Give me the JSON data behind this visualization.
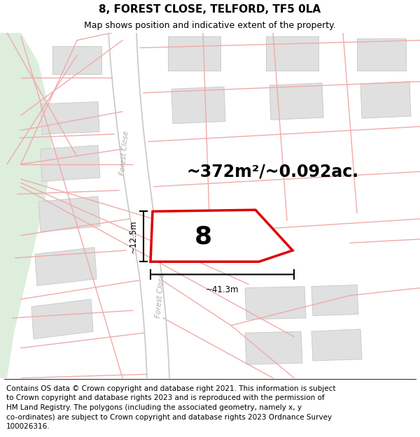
{
  "title": "8, FOREST CLOSE, TELFORD, TF5 0LA",
  "subtitle": "Map shows position and indicative extent of the property.",
  "footer_lines": [
    "Contains OS data © Crown copyright and database right 2021. This information is subject",
    "to Crown copyright and database rights 2023 and is reproduced with the permission of",
    "HM Land Registry. The polygons (including the associated geometry, namely x, y",
    "co-ordinates) are subject to Crown copyright and database rights 2023 Ordnance Survey",
    "100026316."
  ],
  "area_text": "~372m²/~0.092ac.",
  "plot_number": "8",
  "dim_width": "~41.3m",
  "dim_height": "~12.5m",
  "map_bg": "#ffffff",
  "green_color": "#ddeedd",
  "plot_fill": "#ffffff",
  "plot_stroke": "#dd0000",
  "boundary_color": "#f0aaaa",
  "road_edge_color": "#c8c8c8",
  "building_fill": "#e0e0e0",
  "building_edge": "#cccccc",
  "title_fontsize": 11,
  "subtitle_fontsize": 9,
  "footer_fontsize": 7.5,
  "area_fontsize": 17,
  "plot_num_fontsize": 26,
  "dim_fontsize": 8.5,
  "road_label_fontsize": 7.5,
  "road_label_color": "#aaaaaa"
}
